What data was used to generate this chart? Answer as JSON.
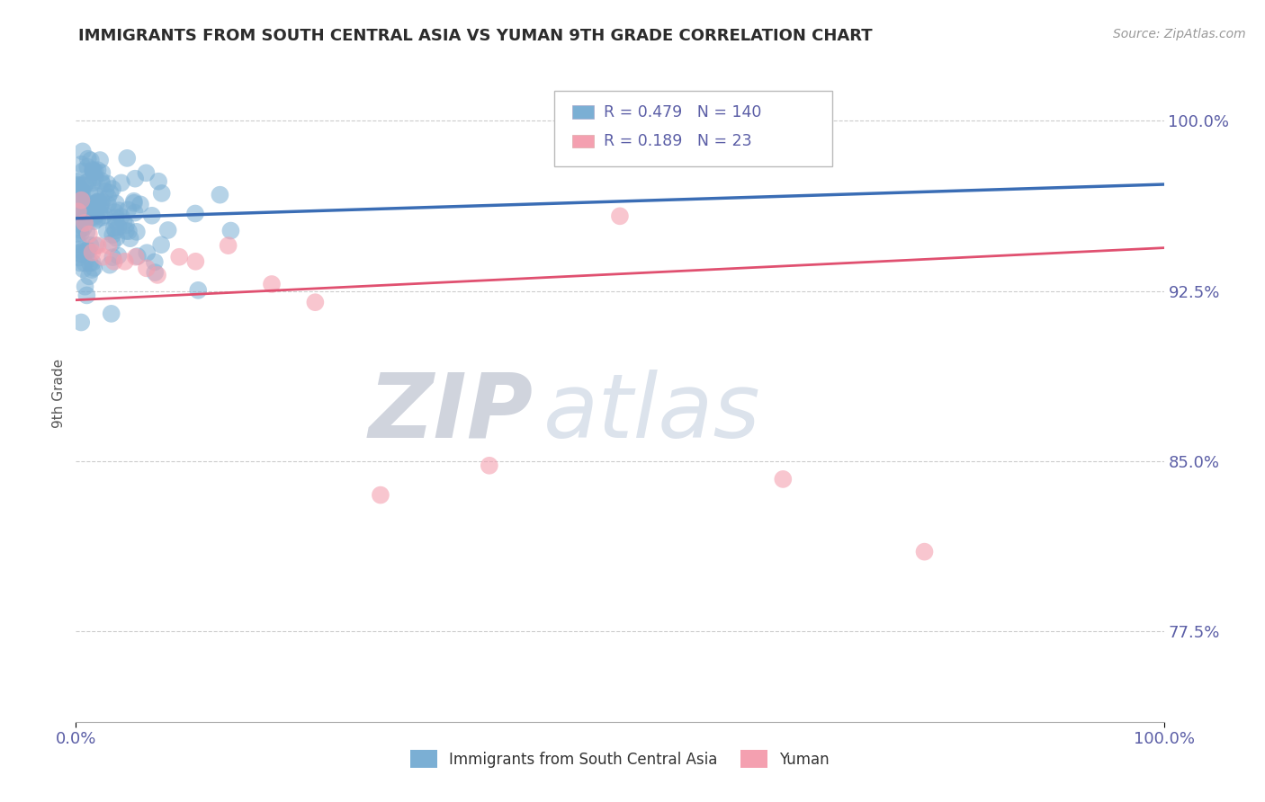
{
  "title": "IMMIGRANTS FROM SOUTH CENTRAL ASIA VS YUMAN 9TH GRADE CORRELATION CHART",
  "source_text": "Source: ZipAtlas.com",
  "ylabel": "9th Grade",
  "xlim": [
    0.0,
    1.0
  ],
  "ylim": [
    0.735,
    1.025
  ],
  "yticks": [
    0.775,
    0.85,
    0.925,
    1.0
  ],
  "ytick_labels": [
    "77.5%",
    "85.0%",
    "92.5%",
    "100.0%"
  ],
  "xtick_labels": [
    "0.0%",
    "100.0%"
  ],
  "xticks": [
    0.0,
    1.0
  ],
  "blue_R": 0.479,
  "blue_N": 140,
  "pink_R": 0.189,
  "pink_N": 23,
  "blue_color": "#7bafd4",
  "pink_color": "#f4a0b0",
  "blue_line_color": "#3a6db5",
  "pink_line_color": "#e05070",
  "legend_label_blue": "Immigrants from South Central Asia",
  "legend_label_pink": "Yuman",
  "watermark_zip": "ZIP",
  "watermark_atlas": "atlas",
  "background_color": "#ffffff",
  "grid_color": "#cccccc",
  "axis_label_color": "#5b5ea6",
  "title_color": "#2c2c2c",
  "blue_trend_x0": 0.0,
  "blue_trend_y0": 0.957,
  "blue_trend_x1": 1.0,
  "blue_trend_y1": 0.972,
  "pink_trend_x0": 0.0,
  "pink_trend_y0": 0.921,
  "pink_trend_x1": 1.0,
  "pink_trend_y1": 0.944
}
